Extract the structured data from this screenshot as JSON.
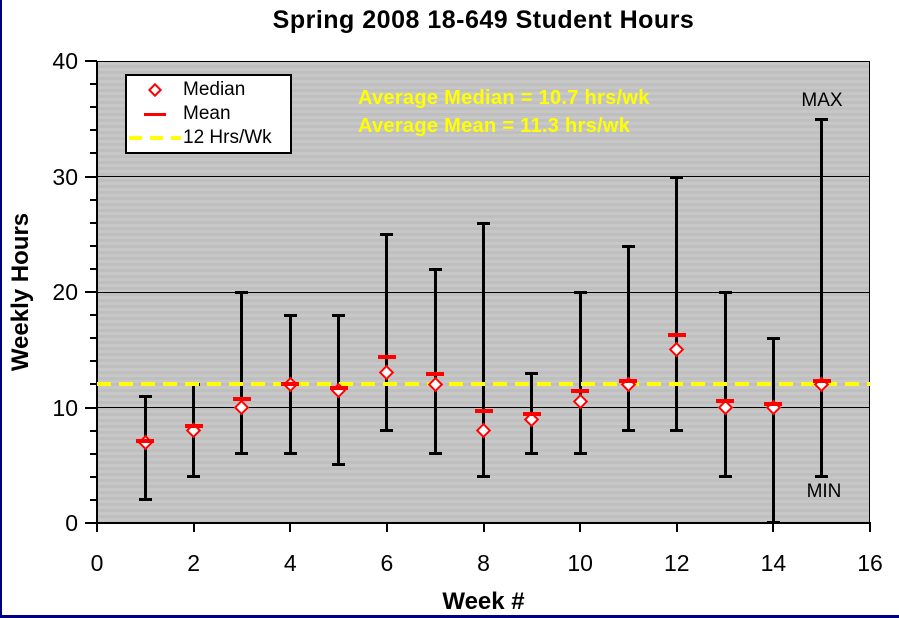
{
  "window": {
    "edge_color": "#000080",
    "background": "#ffffff"
  },
  "chart_data": {
    "type": "scatter",
    "title": "Spring 2008 18-649 Student Hours",
    "xlabel": "Week #",
    "ylabel": "Weekly Hours",
    "xlim": [
      0,
      16
    ],
    "ylim": [
      0,
      40
    ],
    "x_ticks": [
      0,
      2,
      4,
      6,
      8,
      10,
      12,
      14,
      16
    ],
    "y_ticks": [
      0,
      10,
      20,
      30,
      40
    ],
    "y_minor_tick_step": 2,
    "grid": "horizontal-major",
    "plot_bg_color": "#c3c3c3",
    "weeks": [
      1,
      2,
      3,
      4,
      5,
      6,
      7,
      8,
      9,
      10,
      11,
      12,
      13,
      14,
      15
    ],
    "series": [
      {
        "name": "Median",
        "marker": "open-diamond",
        "color": "#ff0000",
        "values": [
          7,
          8,
          10,
          12,
          11.5,
          13,
          12,
          8,
          9,
          10.5,
          12,
          15,
          10,
          10,
          12
        ]
      },
      {
        "name": "Mean",
        "marker": "dash",
        "color": "#ff0000",
        "values": [
          7.1,
          8.4,
          10.7,
          12,
          11.7,
          14.4,
          12.9,
          9.7,
          9.4,
          11.4,
          12.3,
          16.3,
          10.6,
          10.3,
          12.3
        ]
      },
      {
        "name": "Min",
        "marker": "errorbar-low",
        "color": "#000000",
        "values": [
          2,
          4,
          6,
          6,
          5,
          8,
          6,
          4,
          6,
          6,
          8,
          8,
          4,
          0,
          4
        ]
      },
      {
        "name": "Max",
        "marker": "errorbar-high",
        "color": "#000000",
        "values": [
          11,
          12,
          20,
          18,
          18,
          25,
          22,
          26,
          13,
          20,
          24,
          30,
          20,
          16,
          35
        ]
      }
    ],
    "reference_line": {
      "value": 12,
      "label": "12 Hrs/Wk",
      "color": "#ffff00",
      "style": "dashed"
    },
    "legend": {
      "position": "top-left",
      "items": [
        {
          "label": "Median",
          "marker": "open-diamond",
          "color": "#ff0000"
        },
        {
          "label": "Mean",
          "marker": "dash",
          "color": "#ff0000"
        },
        {
          "label": "12 Hrs/Wk",
          "marker": "dashed-line",
          "color": "#ffff00"
        }
      ]
    },
    "annotations": {
      "avg_median": "Average Median = 10.7 hrs/wk",
      "avg_mean": "Average Mean = 11.3 hrs/wk",
      "annotation_color": "#ffff00",
      "max_label": "MAX",
      "min_label": "MIN"
    }
  }
}
